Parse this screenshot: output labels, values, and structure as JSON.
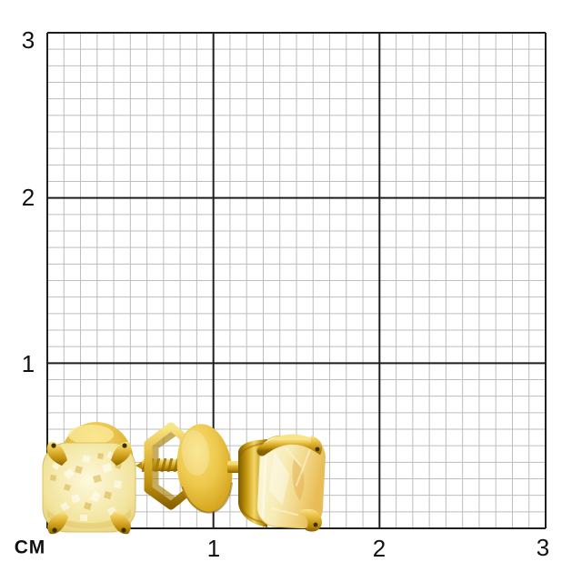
{
  "scale": {
    "unit_label": "СМ",
    "x_tick_labels": [
      "1",
      "2",
      "3"
    ],
    "y_tick_labels": [
      "3",
      "2",
      "1"
    ],
    "grid": {
      "minor_step_cm": 0.1,
      "major_step_cm": 1,
      "extent_cm": 3,
      "minor_line_color": "#bdbdbd",
      "major_line_color": "#1e1e1e",
      "background_color": "#ffffff",
      "label_color": "#111111"
    }
  },
  "product": {
    "subject": "pair of yellow-gold stud earrings with cushion-cut yellow stones and screw-back clasp",
    "items": [
      {
        "id": "left-earring-front-view",
        "description": "front view: cushion-cut pale yellow stone in four-prong gold setting with round gold back disc above"
      },
      {
        "id": "screw-back-clasp",
        "description": "side view: hexagonal openwork screw-back nut, large round gold disc and threaded post"
      },
      {
        "id": "right-earring-side-view",
        "description": "three-quarter view: yellow stone in four-prong gold basket with post"
      }
    ],
    "approx_width_cm": {
      "earring_head": 0.55,
      "overall_span": 1.7
    },
    "colors": {
      "metal_gold": "#d9a91a",
      "metal_highlight": "#f9e587",
      "metal_shadow": "#8a6300",
      "stone_left": "#f2e49c",
      "stone_left_highlight": "#fdf9dd",
      "stone_right": "#f0d27e",
      "stone_right_highlight": "#fdf9de",
      "claw_notch": "#3d2f00"
    }
  }
}
